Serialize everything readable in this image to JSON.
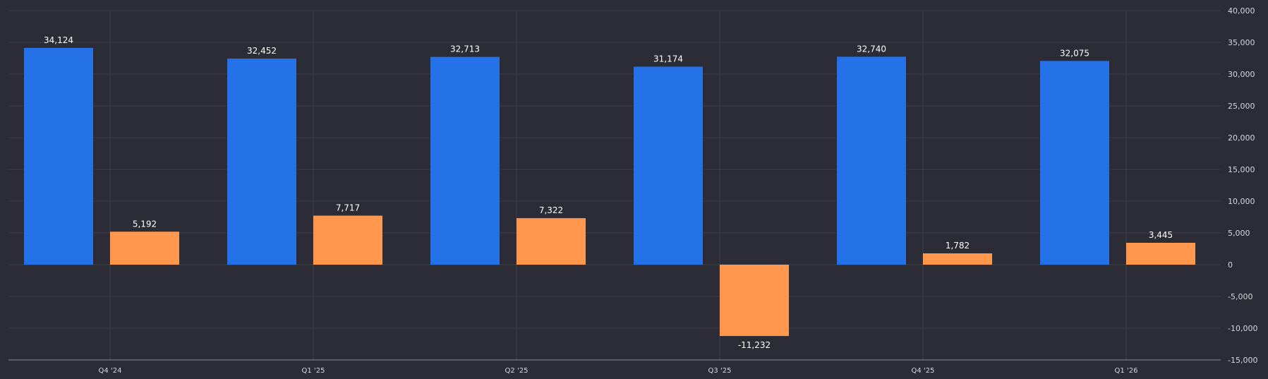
{
  "chart_data": {
    "type": "bar",
    "categories": [
      "Q4 '24",
      "Q1 '25",
      "Q2 '25",
      "Q3 '25",
      "Q4 '25",
      "Q1 '26"
    ],
    "series": [
      {
        "values": [
          34124,
          32452,
          32713,
          31174,
          32740,
          32075
        ],
        "color": "#2571e8"
      },
      {
        "values": [
          5192,
          7717,
          7322,
          -11232,
          1782,
          3445
        ],
        "color": "#ff984c"
      }
    ],
    "value_labels": [
      [
        "34,124",
        "32,452",
        "32,713",
        "31,174",
        "32,740",
        "32,075"
      ],
      [
        "5,192",
        "7,717",
        "7,322",
        "-11,232",
        "1,782",
        "3,445"
      ]
    ],
    "ylim": [
      -15000,
      40000
    ],
    "yticks": [
      40000,
      35000,
      30000,
      25000,
      20000,
      15000,
      10000,
      5000,
      0,
      -5000,
      -10000,
      -15000
    ],
    "ytick_labels": [
      "40,000",
      "35,000",
      "30,000",
      "25,000",
      "20,000",
      "15,000",
      "10,000",
      "5,000",
      "0",
      "-5,000",
      "-10,000",
      "-15,000"
    ],
    "y_axis_side": "right",
    "grid": true,
    "legend": false,
    "title": "",
    "xlabel": "",
    "ylabel": ""
  }
}
